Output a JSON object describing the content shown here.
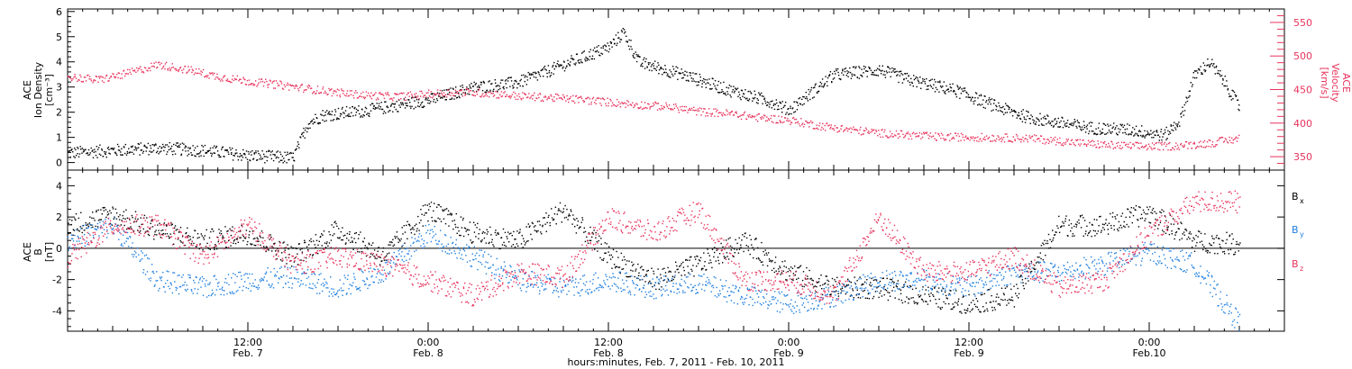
{
  "chart_data": [
    {
      "type": "scatter",
      "panel": "top",
      "left_axis_title": [
        "ACE",
        "Ion Density",
        "[cm⁻³]"
      ],
      "right_axis_title": [
        "ACE",
        "Velocity",
        "[km/s]"
      ],
      "y_left_range": [
        -0.3,
        6.1
      ],
      "y_left_ticks": [
        "0",
        "1",
        "2",
        "3",
        "4",
        "5",
        "6"
      ],
      "y_right_range": [
        330,
        570
      ],
      "y_right_ticks": [
        "350",
        "400",
        "450",
        "500",
        "550"
      ],
      "x_range_hours": [
        0,
        81
      ],
      "series": [
        {
          "name": "Ion Density",
          "axis": "left",
          "color": "#000000",
          "x": [
            0,
            3,
            6,
            9,
            12,
            15,
            16,
            17,
            20,
            24,
            27,
            30,
            33,
            36,
            37,
            38,
            41,
            44,
            47,
            48,
            51,
            54,
            56,
            59,
            62,
            64,
            66,
            68,
            71,
            73,
            74,
            75,
            76,
            77,
            78
          ],
          "y": [
            0.4,
            0.5,
            0.6,
            0.5,
            0.3,
            0.2,
            1.6,
            1.9,
            2.1,
            2.5,
            3.0,
            3.2,
            3.9,
            4.6,
            5.2,
            4.0,
            3.5,
            2.9,
            2.4,
            2.1,
            3.5,
            3.7,
            3.3,
            2.9,
            2.2,
            1.8,
            1.6,
            1.4,
            1.3,
            1.1,
            1.7,
            3.5,
            4.0,
            3.2,
            2.2
          ]
        },
        {
          "name": "Velocity",
          "axis": "right",
          "color": "#e8335c",
          "x": [
            0,
            2,
            4,
            6,
            8,
            10,
            12,
            14,
            16,
            18,
            20,
            22,
            24,
            26,
            28,
            30,
            32,
            34,
            36,
            38,
            40,
            42,
            44,
            46,
            48,
            50,
            52,
            54,
            56,
            58,
            60,
            62,
            64,
            66,
            68,
            70,
            72,
            74,
            76,
            78
          ],
          "y": [
            470,
            465,
            475,
            488,
            480,
            470,
            463,
            458,
            452,
            446,
            442,
            440,
            444,
            447,
            445,
            441,
            439,
            436,
            432,
            428,
            425,
            418,
            415,
            409,
            405,
            397,
            391,
            386,
            383,
            380,
            380,
            379,
            378,
            374,
            370,
            367,
            366,
            367,
            371,
            378
          ]
        }
      ]
    },
    {
      "type": "scatter",
      "panel": "bottom",
      "left_axis_title": [
        "ACE",
        "B",
        "[nT]"
      ],
      "y_range": [
        -5.3,
        5.0
      ],
      "y_ticks": [
        "-4",
        "-2",
        "0",
        "2",
        "4"
      ],
      "x_range_hours": [
        0,
        81
      ],
      "zero_line": true,
      "x_tick_labels": [
        {
          "hour": 12,
          "time": "12:00",
          "date": "Feb. 7"
        },
        {
          "hour": 24,
          "time": "0:00",
          "date": "Feb. 8"
        },
        {
          "hour": 36,
          "time": "12:00",
          "date": "Feb. 8"
        },
        {
          "hour": 48,
          "time": "0:00",
          "date": "Feb. 9"
        },
        {
          "hour": 60,
          "time": "12:00",
          "date": "Feb. 9"
        },
        {
          "hour": 72,
          "time": "0:00",
          "date": "Feb.10"
        }
      ],
      "xlabel": "hours:minutes, Feb.  7, 2011 - Feb. 10, 2011",
      "legend_position": "right",
      "series": [
        {
          "name": "B",
          "subscript": "x",
          "color": "#000000",
          "x": [
            0,
            3,
            6,
            9,
            12,
            15,
            18,
            21,
            24,
            27,
            30,
            33,
            36,
            39,
            42,
            45,
            48,
            51,
            54,
            57,
            60,
            63,
            66,
            69,
            72,
            75,
            78
          ],
          "y": [
            1.5,
            2.2,
            1.2,
            0.5,
            1.0,
            -0.5,
            1.2,
            -0.5,
            2.5,
            1.0,
            0.5,
            2.5,
            -0.5,
            -2.0,
            -1.0,
            0.5,
            -1.5,
            -2.5,
            -2.5,
            -3.0,
            -3.5,
            -3.0,
            1.5,
            1.5,
            2.3,
            0.5,
            0.3
          ]
        },
        {
          "name": "B",
          "subscript": "y",
          "color": "#1f7fe0",
          "x": [
            0,
            3,
            6,
            9,
            12,
            15,
            18,
            21,
            24,
            27,
            30,
            33,
            36,
            39,
            42,
            45,
            48,
            51,
            54,
            57,
            60,
            63,
            66,
            69,
            72,
            75,
            78
          ],
          "y": [
            0.5,
            1.5,
            -2.0,
            -2.5,
            -2.0,
            -1.8,
            -2.5,
            -1.5,
            1.0,
            -0.5,
            -2.0,
            -2.5,
            -2.0,
            -2.5,
            -2.2,
            -3.0,
            -3.5,
            -3.0,
            -2.0,
            -2.0,
            -2.5,
            -1.5,
            -1.5,
            -1.0,
            -0.2,
            -1.0,
            -4.8
          ]
        },
        {
          "name": "B",
          "subscript": "z",
          "color": "#e8335c",
          "x": [
            0,
            3,
            6,
            9,
            12,
            15,
            18,
            21,
            24,
            27,
            30,
            33,
            36,
            39,
            42,
            45,
            48,
            51,
            54,
            57,
            60,
            63,
            66,
            69,
            72,
            75,
            78
          ],
          "y": [
            -0.5,
            1.5,
            1.5,
            -0.5,
            1.5,
            -1.0,
            -0.5,
            -1.0,
            -2.0,
            -3.0,
            -1.5,
            -1.8,
            2.0,
            1.0,
            2.5,
            -2.0,
            -2.0,
            -3.0,
            2.0,
            -1.5,
            -1.5,
            -0.5,
            -2.5,
            -2.0,
            1.0,
            3.0,
            3.0
          ]
        }
      ]
    }
  ]
}
